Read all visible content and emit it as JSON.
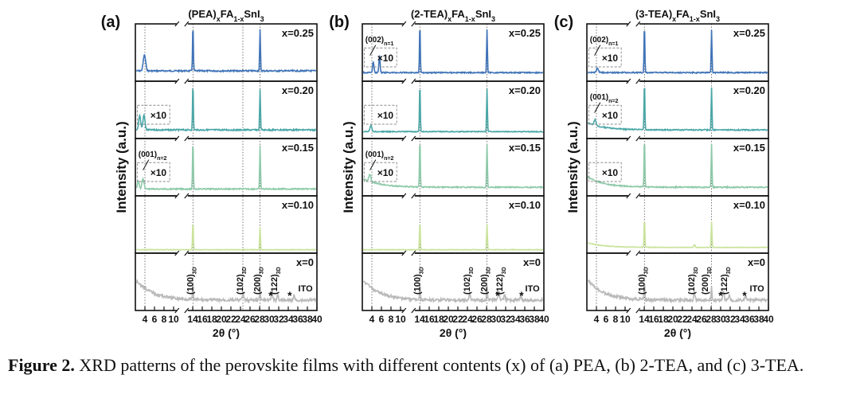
{
  "chart_data": [
    {
      "type": "line",
      "panel_label": "(a)",
      "title_main": "(PEA)",
      "title_sub_x": "x",
      "title_mid": "FA",
      "title_sub_1x": "1-x",
      "title_end": "SnI",
      "title_sub_3": "3",
      "xlabel": "2θ (°)",
      "ylabel": "Intensity (a.u.)",
      "xlim": [
        2,
        40
      ],
      "xticks": [
        4,
        6,
        8,
        10,
        14,
        16,
        18,
        20,
        22,
        24,
        26,
        28,
        30,
        32,
        34,
        36,
        38,
        40
      ],
      "xtick_labels": [
        "4",
        "6",
        "8",
        "10",
        "14",
        "16",
        "18",
        "20",
        "22",
        "24",
        "26",
        "28",
        "30",
        "32",
        "34",
        "36",
        "38",
        "40"
      ],
      "series": [
        {
          "name": "x=0.25",
          "color": "#3f73b7",
          "baseline": 0.82,
          "noise": 0.025,
          "peaks": [
            [
              3.9,
              0.28,
              0.35
            ],
            [
              14.05,
              0.82,
              0.12
            ],
            [
              28.1,
              0.72,
              0.12
            ]
          ],
          "zoom_box": false
        },
        {
          "name": "x=0.20",
          "color": "#4aa6a6",
          "baseline": 0.85,
          "noise": 0.025,
          "peaks": [
            [
              2.9,
              0.25,
              0.3
            ],
            [
              3.8,
              0.26,
              0.3
            ],
            [
              14.05,
              0.82,
              0.12
            ],
            [
              28.1,
              0.72,
              0.12
            ]
          ],
          "zoom_box": true,
          "zoom_label": "×10"
        },
        {
          "name": "x=0.15",
          "color": "#8dc9a9",
          "baseline": 0.88,
          "noise": 0.02,
          "peaks": [
            [
              2.6,
              0.15,
              0.25
            ],
            [
              3.6,
              0.18,
              0.3
            ],
            [
              14.05,
              0.85,
              0.12
            ],
            [
              28.1,
              0.75,
              0.12
            ]
          ],
          "zoom_box": true,
          "zoom_label": "×10",
          "annotation": "(001)",
          "annotation_sub": "n=2"
        },
        {
          "name": "x=0.10",
          "color": "#c9e39b",
          "baseline": 0.94,
          "noise": 0.01,
          "peaks": [
            [
              14.05,
              0.5,
              0.12
            ],
            [
              28.1,
              0.4,
              0.12
            ]
          ],
          "zoom_box": false
        },
        {
          "name": "x=0",
          "color": "#b9b9b9",
          "baseline": 0.82,
          "noise": 0.05,
          "decay": 0.35,
          "peaks": [
            [
              14.05,
              0.3,
              0.12
            ],
            [
              24.5,
              0.12,
              0.2
            ],
            [
              28.1,
              0.25,
              0.12
            ],
            [
              30.6,
              0.15,
              0.2
            ],
            [
              31.8,
              0.1,
              0.2
            ],
            [
              35.2,
              0.08,
              0.2
            ]
          ],
          "zoom_box": false
        }
      ],
      "bottom_annotations": [
        {
          "x": 14.05,
          "label": "(100)",
          "sub": "3D"
        },
        {
          "x": 24.5,
          "label": "(102)",
          "sub": "3D"
        },
        {
          "x": 28.1,
          "label": "(200)",
          "sub": "3D"
        },
        {
          "x": 31.7,
          "label": "(122)",
          "sub": "3D"
        }
      ],
      "bottom_stars": [
        30.3,
        34.3
      ],
      "ito_label": "ITO",
      "guide_lines": [
        4.0,
        14.05,
        24.5,
        28.1
      ],
      "top_note": "",
      "top_note_sub": ""
    },
    {
      "type": "line",
      "panel_label": "(b)",
      "title_main": "(2-TEA)",
      "title_sub_x": "x",
      "title_mid": "FA",
      "title_sub_1x": "1-x",
      "title_end": "SnI",
      "title_sub_3": "3",
      "xlabel": "2θ (°)",
      "ylabel": "Intensity (a.u.)",
      "xlim": [
        2,
        40
      ],
      "xticks": [
        4,
        6,
        8,
        10,
        14,
        16,
        18,
        20,
        22,
        24,
        26,
        28,
        30,
        32,
        34,
        36,
        38,
        40
      ],
      "xtick_labels": [
        "4",
        "6",
        "8",
        "10",
        "14",
        "16",
        "18",
        "20",
        "22",
        "24",
        "26",
        "28",
        "30",
        "32",
        "34",
        "36",
        "38",
        "40"
      ],
      "series": [
        {
          "name": "x=0.25",
          "color": "#3f73b7",
          "baseline": 0.85,
          "noise": 0.02,
          "peaks": [
            [
              4.3,
              0.2,
              0.18
            ],
            [
              5.6,
              0.3,
              0.18
            ],
            [
              14.05,
              0.85,
              0.12
            ],
            [
              28.1,
              0.75,
              0.12
            ]
          ],
          "zoom_box": true,
          "zoom_label": "×10",
          "annotation": "(002)",
          "annotation_sub": "n=1"
        },
        {
          "name": "x=0.20",
          "color": "#4aa6a6",
          "baseline": 0.88,
          "noise": 0.015,
          "peaks": [
            [
              3.8,
              0.1,
              0.3
            ],
            [
              14.05,
              0.85,
              0.12
            ],
            [
              28.1,
              0.75,
              0.12
            ]
          ],
          "zoom_box": true,
          "zoom_label": "×10"
        },
        {
          "name": "x=0.15",
          "color": "#8dc9a9",
          "baseline": 0.85,
          "noise": 0.02,
          "decay": 0.15,
          "peaks": [
            [
              3.6,
              0.12,
              0.3
            ],
            [
              14.05,
              0.85,
              0.12
            ],
            [
              28.1,
              0.75,
              0.12
            ]
          ],
          "zoom_box": true,
          "zoom_label": "×10",
          "annotation": "(001)",
          "annotation_sub": "n=2"
        },
        {
          "name": "x=0.10",
          "color": "#c9e39b",
          "baseline": 0.94,
          "noise": 0.01,
          "peaks": [
            [
              14.05,
              0.5,
              0.12
            ],
            [
              28.1,
              0.45,
              0.12
            ]
          ],
          "zoom_box": false
        },
        {
          "name": "x=0",
          "color": "#b9b9b9",
          "baseline": 0.82,
          "noise": 0.05,
          "decay": 0.35,
          "peaks": [
            [
              14.05,
              0.3,
              0.12
            ],
            [
              24.5,
              0.12,
              0.2
            ],
            [
              28.1,
              0.25,
              0.12
            ],
            [
              30.6,
              0.15,
              0.2
            ],
            [
              31.8,
              0.1,
              0.2
            ],
            [
              35.2,
              0.08,
              0.2
            ]
          ],
          "zoom_box": false
        }
      ],
      "bottom_annotations": [
        {
          "x": 14.05,
          "label": "(100)",
          "sub": "3D"
        },
        {
          "x": 24.5,
          "label": "(102)",
          "sub": "3D"
        },
        {
          "x": 28.1,
          "label": "(200)",
          "sub": "3D"
        },
        {
          "x": 31.3,
          "label": "(122)",
          "sub": "3D"
        }
      ],
      "bottom_stars": [
        30.3,
        35.3
      ],
      "ito_label": "ITO",
      "guide_lines": [
        4.0,
        14.05,
        28.1
      ],
      "top_note": "",
      "top_note_sub": ""
    },
    {
      "type": "line",
      "panel_label": "(c)",
      "title_main": "(3-TEA)",
      "title_sub_x": "x",
      "title_mid": "FA",
      "title_sub_1x": "1-x",
      "title_end": "SnI",
      "title_sub_3": "3",
      "xlabel": "2θ (°)",
      "ylabel": "Intensity (a.u.)",
      "xlim": [
        2,
        40
      ],
      "xticks": [
        4,
        6,
        8,
        10,
        14,
        16,
        18,
        20,
        22,
        24,
        26,
        28,
        30,
        32,
        34,
        36,
        38,
        40
      ],
      "xtick_labels": [
        "4",
        "6",
        "8",
        "10",
        "14",
        "16",
        "18",
        "20",
        "22",
        "24",
        "26",
        "28",
        "30",
        "32",
        "34",
        "36",
        "38",
        "40"
      ],
      "series": [
        {
          "name": "x=0.25",
          "color": "#3f73b7",
          "baseline": 0.85,
          "noise": 0.02,
          "peaks": [
            [
              4.2,
              0.08,
              0.3
            ],
            [
              14.05,
              0.85,
              0.12
            ],
            [
              28.1,
              0.75,
              0.12
            ]
          ],
          "zoom_box": true,
          "zoom_label": "×10",
          "annotation": "(002)",
          "annotation_sub": "n=1"
        },
        {
          "name": "x=0.20",
          "color": "#4aa6a6",
          "baseline": 0.85,
          "noise": 0.02,
          "decay": 0.12,
          "peaks": [
            [
              3.7,
              0.1,
              0.3
            ],
            [
              14.05,
              0.85,
              0.12
            ],
            [
              28.1,
              0.75,
              0.12
            ]
          ],
          "zoom_box": true,
          "zoom_label": "×10",
          "annotation": "(001)",
          "annotation_sub": "n=2"
        },
        {
          "name": "x=0.15",
          "color": "#8dc9a9",
          "baseline": 0.85,
          "noise": 0.02,
          "decay": 0.18,
          "peaks": [
            [
              14.05,
              0.85,
              0.12
            ],
            [
              28.1,
              0.75,
              0.12
            ]
          ],
          "zoom_box": true,
          "zoom_label": "×10"
        },
        {
          "name": "x=0.10",
          "color": "#c9e39b",
          "baseline": 0.9,
          "noise": 0.01,
          "decay": 0.08,
          "peaks": [
            [
              14.05,
              0.5,
              0.12
            ],
            [
              24.5,
              0.05,
              0.2
            ],
            [
              28.1,
              0.45,
              0.12
            ]
          ],
          "zoom_box": false
        },
        {
          "name": "x=0",
          "color": "#b9b9b9",
          "baseline": 0.82,
          "noise": 0.05,
          "decay": 0.35,
          "peaks": [
            [
              14.05,
              0.3,
              0.12
            ],
            [
              24.5,
              0.12,
              0.2
            ],
            [
              28.1,
              0.25,
              0.12
            ],
            [
              30.6,
              0.15,
              0.2
            ],
            [
              31.8,
              0.1,
              0.2
            ],
            [
              35.2,
              0.08,
              0.2
            ]
          ],
          "zoom_box": false
        }
      ],
      "bottom_annotations": [
        {
          "x": 14.05,
          "label": "(100)",
          "sub": "3D"
        },
        {
          "x": 24.5,
          "label": "(102)",
          "sub": "3D"
        },
        {
          "x": 27.3,
          "label": "(200)",
          "sub": "3D"
        },
        {
          "x": 31.3,
          "label": "(122)",
          "sub": "3D"
        }
      ],
      "bottom_stars": [
        30.0,
        35.0
      ],
      "ito_label": "ITO",
      "guide_lines": [
        4.0,
        14.05,
        28.1
      ],
      "top_note": "",
      "top_note_sub": ""
    }
  ],
  "caption": {
    "label": "Figure 2.",
    "text": " XRD patterns of the perovskite films with different contents (x) of (a) PEA, (b) 2-TEA, and (c) 3-TEA."
  },
  "colors": {
    "axis": "#111111",
    "guide": "#555555",
    "zoom_box": "#888888"
  }
}
